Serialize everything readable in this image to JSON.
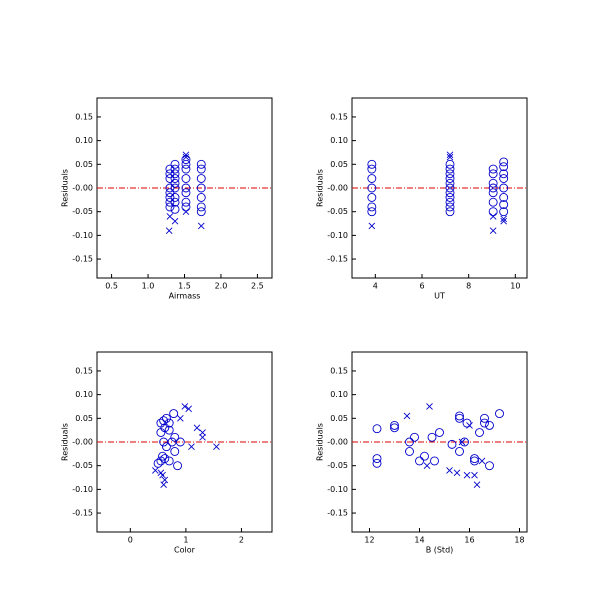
{
  "chart_data": [
    {
      "type": "scatter",
      "xlabel": "Airmass",
      "ylabel": "Residuals",
      "xlim": [
        0.3,
        2.7
      ],
      "xticks": [
        0.5,
        {
          "value": 1.0,
          "label": "1.0"
        },
        1.5,
        {
          "value": 2.0,
          "label": "2.0"
        },
        2.5
      ],
      "ylim": [
        -0.19,
        0.19
      ],
      "yticks": [
        -0.15,
        {
          "value": -0.1,
          "label": "-0.10"
        },
        -0.05,
        {
          "value": 0,
          "label": "-0.00"
        },
        0.05,
        {
          "value": 0.1,
          "label": "0.10"
        },
        0.15
      ],
      "hline": {
        "value": 0,
        "color": "#dd0000"
      },
      "series": [
        {
          "marker": "o",
          "color": "#0000cc",
          "x": [
            1.3,
            1.3,
            1.3,
            1.3,
            1.3,
            1.3,
            1.3,
            1.3,
            1.37,
            1.37,
            1.37,
            1.37,
            1.37,
            1.37,
            1.37,
            1.37,
            1.37,
            1.52,
            1.52,
            1.52,
            1.52,
            1.52,
            1.52,
            1.52,
            1.52,
            1.73,
            1.73,
            1.73,
            1.73,
            1.73,
            1.73,
            1.73
          ],
          "y": [
            0.04,
            0.03,
            0.02,
            0.0,
            -0.01,
            -0.02,
            -0.03,
            -0.04,
            0.05,
            0.04,
            0.03,
            0.02,
            0.01,
            0.0,
            -0.02,
            -0.03,
            -0.045,
            0.06,
            0.05,
            0.04,
            0.02,
            0.0,
            -0.01,
            -0.03,
            -0.04,
            0.05,
            0.04,
            0.02,
            0.0,
            -0.02,
            -0.04,
            -0.05
          ]
        },
        {
          "marker": "x",
          "color": "#0000cc",
          "x": [
            1.29,
            1.37,
            1.52,
            1.52,
            1.52,
            1.73,
            1.3
          ],
          "y": [
            -0.09,
            -0.07,
            0.07,
            0.065,
            -0.05,
            -0.08,
            -0.06
          ]
        }
      ]
    },
    {
      "type": "scatter",
      "xlabel": "UT",
      "ylabel": "Residuals",
      "xlim": [
        3,
        10.5
      ],
      "xticks": [
        4,
        6,
        8,
        10
      ],
      "ylim": [
        -0.19,
        0.19
      ],
      "yticks": [
        -0.15,
        {
          "value": -0.1,
          "label": "-0.10"
        },
        -0.05,
        {
          "value": 0,
          "label": "-0.00"
        },
        0.05,
        {
          "value": 0.1,
          "label": "0.10"
        },
        0.15
      ],
      "hline": {
        "value": 0,
        "color": "#dd0000"
      },
      "series": [
        {
          "marker": "o",
          "color": "#0000cc",
          "x": [
            3.85,
            3.85,
            3.85,
            3.85,
            3.85,
            3.85,
            3.85,
            7.2,
            7.2,
            7.2,
            7.2,
            7.2,
            7.2,
            7.2,
            7.2,
            7.2,
            7.2,
            7.2,
            9.05,
            9.05,
            9.05,
            9.05,
            9.05,
            9.05,
            9.05,
            9.5,
            9.5,
            9.5,
            9.5,
            9.5,
            9.5,
            9.5,
            9.5
          ],
          "y": [
            0.05,
            0.04,
            0.02,
            0.0,
            -0.02,
            -0.04,
            -0.05,
            0.05,
            0.04,
            0.03,
            0.02,
            0.01,
            0.0,
            -0.01,
            -0.02,
            -0.03,
            -0.04,
            -0.05,
            0.04,
            0.03,
            0.01,
            0.0,
            -0.01,
            -0.03,
            -0.05,
            0.055,
            0.045,
            0.03,
            0.02,
            0.0,
            -0.02,
            -0.035,
            -0.05
          ]
        },
        {
          "marker": "x",
          "color": "#0000cc",
          "x": [
            3.85,
            7.2,
            7.2,
            9.05,
            9.05,
            9.5,
            9.5
          ],
          "y": [
            -0.08,
            0.07,
            0.065,
            -0.09,
            -0.06,
            -0.07,
            -0.065
          ]
        }
      ]
    },
    {
      "type": "scatter",
      "xlabel": "Color",
      "ylabel": "Residuals",
      "xlim": [
        -0.6,
        2.55
      ],
      "xticks": [
        0,
        1,
        2
      ],
      "ylim": [
        -0.19,
        0.19
      ],
      "yticks": [
        -0.15,
        {
          "value": -0.1,
          "label": "-0.10"
        },
        -0.05,
        {
          "value": 0,
          "label": "-0.00"
        },
        0.05,
        {
          "value": 0.1,
          "label": "0.10"
        },
        0.15
      ],
      "hline": {
        "value": 0,
        "color": "#dd0000"
      },
      "series": [
        {
          "marker": "o",
          "color": "#0000cc",
          "x": [
            0.55,
            0.6,
            0.65,
            0.7,
            0.78,
            0.62,
            0.7,
            0.55,
            0.6,
            0.65,
            0.75,
            0.8,
            0.58,
            0.62,
            0.7,
            0.85,
            0.5,
            0.55,
            0.9,
            0.8
          ],
          "y": [
            0.04,
            0.045,
            0.05,
            0.04,
            0.06,
            0.03,
            0.025,
            0.02,
            0.0,
            -0.01,
            0.0,
            0.01,
            -0.03,
            -0.035,
            -0.04,
            -0.05,
            -0.045,
            -0.04,
            0.0,
            -0.02
          ]
        },
        {
          "marker": "x",
          "color": "#0000cc",
          "x": [
            0.45,
            0.6,
            0.62,
            0.58,
            0.98,
            1.05,
            1.2,
            1.3,
            1.3,
            1.1,
            1.55,
            0.9,
            0.55
          ],
          "y": [
            -0.06,
            -0.09,
            -0.08,
            -0.07,
            0.075,
            0.07,
            0.03,
            0.02,
            0.01,
            -0.01,
            -0.01,
            0.05,
            -0.065
          ]
        }
      ]
    },
    {
      "type": "scatter",
      "xlabel": "B (Std)",
      "ylabel": "Residuals",
      "xlim": [
        11.3,
        18.3
      ],
      "xticks": [
        12,
        14,
        16,
        18
      ],
      "ylim": [
        -0.19,
        0.19
      ],
      "yticks": [
        -0.15,
        {
          "value": -0.1,
          "label": "-0.10"
        },
        -0.05,
        {
          "value": 0,
          "label": "-0.00"
        },
        0.05,
        {
          "value": 0.1,
          "label": "0.10"
        },
        0.15
      ],
      "hline": {
        "value": 0,
        "color": "#dd0000"
      },
      "series": [
        {
          "marker": "o",
          "color": "#0000cc",
          "x": [
            12.3,
            12.3,
            12.3,
            13.0,
            13.0,
            13.6,
            13.6,
            13.8,
            14.0,
            14.2,
            14.5,
            14.8,
            14.6,
            15.3,
            15.6,
            15.6,
            15.6,
            15.8,
            16.2,
            16.2,
            16.4,
            16.6,
            16.6,
            16.8,
            16.8,
            17.2,
            15.9
          ],
          "y": [
            0.028,
            -0.035,
            -0.045,
            0.03,
            0.035,
            0.0,
            -0.02,
            0.01,
            -0.04,
            -0.03,
            0.01,
            0.02,
            -0.04,
            -0.005,
            0.055,
            0.05,
            -0.02,
            0.0,
            -0.035,
            -0.04,
            0.02,
            0.04,
            0.05,
            0.035,
            -0.05,
            0.06,
            0.04
          ]
        },
        {
          "marker": "x",
          "color": "#0000cc",
          "x": [
            13.5,
            14.4,
            14.3,
            15.2,
            15.5,
            15.7,
            16.0,
            16.2,
            16.3,
            16.5,
            15.9
          ],
          "y": [
            0.055,
            0.075,
            -0.05,
            -0.06,
            -0.065,
            0.0,
            0.035,
            -0.07,
            -0.09,
            -0.04,
            -0.07
          ]
        }
      ]
    }
  ]
}
